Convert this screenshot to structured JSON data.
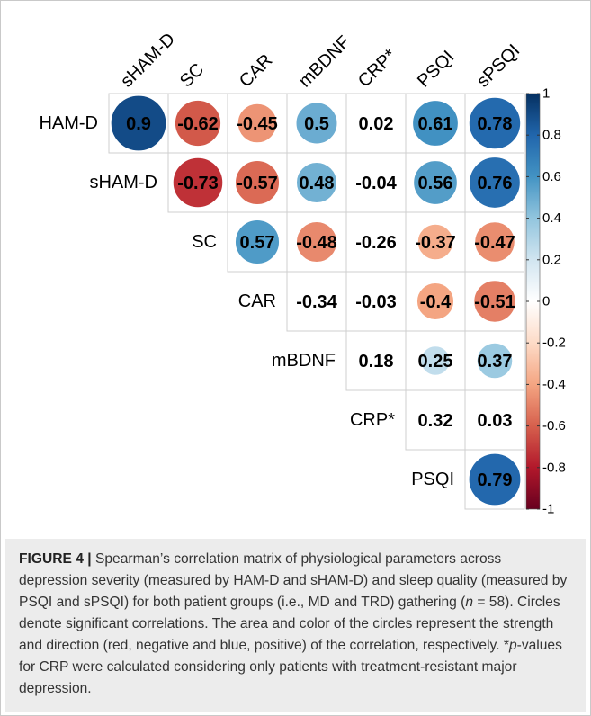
{
  "chart_data": {
    "type": "correlation",
    "rows": [
      "HAM-D",
      "sHAM-D",
      "SC",
      "CAR",
      "mBDNF",
      "CRP*",
      "PSQI"
    ],
    "columns": [
      "sHAM-D",
      "SC",
      "CAR",
      "mBDNF",
      "CRP*",
      "PSQI",
      "sPSQI"
    ],
    "values": [
      [
        0.9,
        -0.62,
        -0.45,
        0.5,
        0.02,
        0.61,
        0.78
      ],
      [
        null,
        -0.73,
        -0.57,
        0.48,
        -0.04,
        0.56,
        0.76
      ],
      [
        null,
        null,
        0.57,
        -0.48,
        -0.26,
        -0.37,
        -0.47
      ],
      [
        null,
        null,
        null,
        -0.34,
        -0.03,
        -0.4,
        -0.51
      ],
      [
        null,
        null,
        null,
        null,
        0.18,
        0.25,
        0.37
      ],
      [
        null,
        null,
        null,
        null,
        null,
        0.32,
        0.03
      ],
      [
        null,
        null,
        null,
        null,
        null,
        null,
        0.79
      ]
    ],
    "significant": [
      [
        true,
        true,
        true,
        true,
        false,
        true,
        true
      ],
      [
        false,
        true,
        true,
        true,
        false,
        true,
        true
      ],
      [
        false,
        false,
        true,
        true,
        false,
        true,
        true
      ],
      [
        false,
        false,
        false,
        false,
        false,
        true,
        true
      ],
      [
        false,
        false,
        false,
        false,
        false,
        true,
        true
      ],
      [
        false,
        false,
        false,
        false,
        false,
        false,
        false
      ],
      [
        false,
        false,
        false,
        false,
        false,
        false,
        true
      ]
    ],
    "colorscale": [
      "#67001F",
      "#B2182B",
      "#D6604D",
      "#F4A582",
      "#FDDBC7",
      "#FFFFFF",
      "#D1E5F0",
      "#92C5DE",
      "#4393C3",
      "#2166AC",
      "#053061"
    ],
    "clim": [
      -1,
      1
    ],
    "cticks": [
      1,
      0.8,
      0.6,
      0.4,
      0.2,
      0,
      -0.2,
      -0.4,
      -0.6,
      -0.8,
      -1
    ]
  },
  "caption": {
    "segments": [
      "FIGURE 4 |",
      " Spearman’s correlation matrix of physiological parameters across depression severity (measured by HAM-D and sHAM-D) and sleep quality (measured by PSQI and sPSQI) for both patient groups (i.e., MD and TRD) gathering (",
      "n",
      " = 58). Circles denote significant correlations. The area and color of the circles represent the strength and direction (red, negative and blue, positive) of the correlation, respectively. *",
      "p",
      "-values for CRP were calculated considering only patients with treatment-resistant major depression."
    ]
  }
}
